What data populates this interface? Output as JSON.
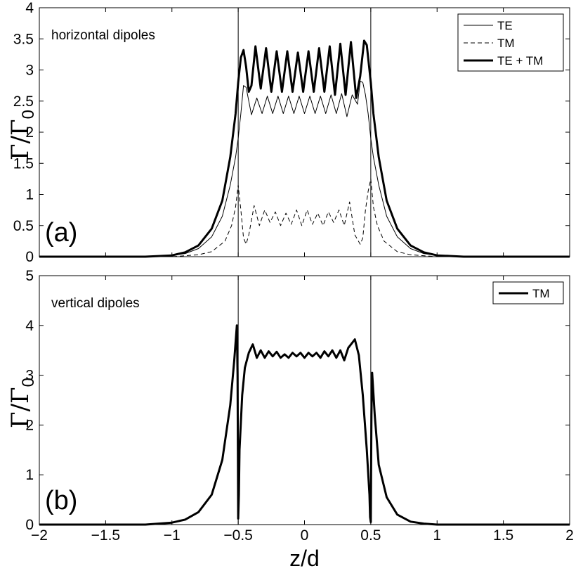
{
  "chart_data": [
    {
      "type": "line",
      "panel_label": "(a)",
      "annotation": "horizontal dipoles",
      "ylabel": "Γ/Γ",
      "ylabel_sub": "0",
      "xlim": [
        -2,
        2
      ],
      "ylim": [
        0,
        4
      ],
      "yticks": [
        "0",
        "0.5",
        "1",
        "1.5",
        "2",
        "2.5",
        "3",
        "3.5",
        "4"
      ],
      "vlines": [
        -0.5,
        0.5
      ],
      "legend_position": "top-right",
      "series": [
        {
          "name": "TE",
          "style": "thin",
          "x": [
            -2,
            -1.2,
            -1.0,
            -0.9,
            -0.8,
            -0.7,
            -0.62,
            -0.56,
            -0.52,
            -0.5,
            -0.48,
            -0.46,
            -0.44,
            -0.42,
            -0.4,
            -0.36,
            -0.32,
            -0.28,
            -0.24,
            -0.2,
            -0.16,
            -0.12,
            -0.08,
            -0.04,
            0.0,
            0.04,
            0.08,
            0.12,
            0.16,
            0.2,
            0.24,
            0.28,
            0.32,
            0.36,
            0.4,
            0.42,
            0.44,
            0.46,
            0.48,
            0.5,
            0.52,
            0.56,
            0.62,
            0.7,
            0.8,
            0.9,
            1.0,
            1.2,
            2
          ],
          "y": [
            0,
            0.0,
            0.02,
            0.05,
            0.13,
            0.32,
            0.65,
            1.15,
            1.6,
            1.9,
            2.3,
            2.75,
            2.72,
            2.5,
            2.28,
            2.55,
            2.3,
            2.58,
            2.3,
            2.58,
            2.3,
            2.58,
            2.3,
            2.58,
            2.3,
            2.58,
            2.3,
            2.58,
            2.3,
            2.6,
            2.3,
            2.62,
            2.25,
            2.6,
            2.45,
            2.82,
            2.8,
            2.6,
            2.3,
            1.9,
            1.6,
            1.15,
            0.65,
            0.32,
            0.13,
            0.05,
            0.02,
            0.0,
            0
          ]
        },
        {
          "name": "TM",
          "style": "dashed",
          "x": [
            -2,
            -1.0,
            -0.8,
            -0.7,
            -0.6,
            -0.55,
            -0.52,
            -0.5,
            -0.48,
            -0.46,
            -0.44,
            -0.42,
            -0.38,
            -0.34,
            -0.3,
            -0.26,
            -0.22,
            -0.18,
            -0.14,
            -0.1,
            -0.06,
            -0.02,
            0.02,
            0.06,
            0.1,
            0.14,
            0.18,
            0.22,
            0.26,
            0.3,
            0.34,
            0.38,
            0.42,
            0.44,
            0.46,
            0.48,
            0.5,
            0.52,
            0.55,
            0.6,
            0.7,
            0.8,
            1.0,
            2
          ],
          "y": [
            0,
            0.0,
            0.03,
            0.08,
            0.25,
            0.5,
            0.8,
            1.15,
            0.75,
            0.3,
            0.2,
            0.35,
            0.82,
            0.5,
            0.75,
            0.55,
            0.72,
            0.5,
            0.7,
            0.52,
            0.75,
            0.5,
            0.75,
            0.52,
            0.7,
            0.5,
            0.72,
            0.55,
            0.75,
            0.5,
            0.88,
            0.35,
            0.2,
            0.3,
            0.75,
            1.05,
            1.25,
            0.8,
            0.5,
            0.25,
            0.08,
            0.03,
            0.0,
            0
          ]
        },
        {
          "name": "TE + TM",
          "style": "thick",
          "x": [
            -2,
            -1.2,
            -1.0,
            -0.9,
            -0.8,
            -0.7,
            -0.62,
            -0.56,
            -0.52,
            -0.5,
            -0.48,
            -0.46,
            -0.44,
            -0.42,
            -0.4,
            -0.37,
            -0.33,
            -0.29,
            -0.25,
            -0.21,
            -0.17,
            -0.13,
            -0.09,
            -0.05,
            -0.01,
            0.03,
            0.07,
            0.11,
            0.15,
            0.19,
            0.23,
            0.27,
            0.31,
            0.35,
            0.39,
            0.42,
            0.45,
            0.47,
            0.5,
            0.52,
            0.56,
            0.62,
            0.7,
            0.8,
            0.9,
            1.0,
            1.2,
            2
          ],
          "y": [
            0,
            0.0,
            0.02,
            0.07,
            0.18,
            0.45,
            0.9,
            1.6,
            2.3,
            2.8,
            3.2,
            3.32,
            3.05,
            2.65,
            2.75,
            3.38,
            2.7,
            3.35,
            2.65,
            3.3,
            2.65,
            3.3,
            2.65,
            3.28,
            2.65,
            3.3,
            2.65,
            3.35,
            2.65,
            3.38,
            2.6,
            3.42,
            2.6,
            3.45,
            2.55,
            2.9,
            3.47,
            3.4,
            2.8,
            2.3,
            1.6,
            0.9,
            0.45,
            0.18,
            0.07,
            0.02,
            0.0,
            0
          ]
        }
      ]
    },
    {
      "type": "line",
      "panel_label": "(b)",
      "annotation": "vertical dipoles",
      "ylabel": "Γ/Γ",
      "ylabel_sub": "0",
      "xlabel": "z/d",
      "xlim": [
        -2,
        2
      ],
      "ylim": [
        0,
        5
      ],
      "xticks": [
        "−2",
        "−1.5",
        "−1",
        "−0.5",
        "0",
        "0.5",
        "1",
        "1.5",
        "2"
      ],
      "yticks": [
        "0",
        "1",
        "2",
        "3",
        "4",
        "5"
      ],
      "vlines": [
        -0.5,
        0.5
      ],
      "legend_position": "top-right",
      "series": [
        {
          "name": "TM",
          "style": "thick",
          "x": [
            -2,
            -1.2,
            -1.0,
            -0.9,
            -0.8,
            -0.7,
            -0.62,
            -0.56,
            -0.53,
            -0.51,
            -0.505,
            -0.5,
            -0.495,
            -0.49,
            -0.47,
            -0.45,
            -0.42,
            -0.39,
            -0.36,
            -0.33,
            -0.3,
            -0.27,
            -0.24,
            -0.21,
            -0.18,
            -0.15,
            -0.12,
            -0.09,
            -0.06,
            -0.03,
            0.0,
            0.03,
            0.06,
            0.09,
            0.12,
            0.15,
            0.18,
            0.21,
            0.24,
            0.27,
            0.3,
            0.33,
            0.36,
            0.38,
            0.41,
            0.44,
            0.47,
            0.49,
            0.495,
            0.5,
            0.505,
            0.51,
            0.53,
            0.56,
            0.62,
            0.7,
            0.8,
            0.9,
            1.0,
            1.2,
            2
          ],
          "y": [
            0,
            0.0,
            0.04,
            0.1,
            0.25,
            0.6,
            1.3,
            2.4,
            3.3,
            4.0,
            3.0,
            0.12,
            0.6,
            1.5,
            2.6,
            3.15,
            3.45,
            3.62,
            3.35,
            3.5,
            3.35,
            3.48,
            3.38,
            3.47,
            3.35,
            3.42,
            3.35,
            3.45,
            3.38,
            3.45,
            3.35,
            3.45,
            3.38,
            3.45,
            3.35,
            3.48,
            3.38,
            3.5,
            3.35,
            3.5,
            3.3,
            3.55,
            3.65,
            3.72,
            3.4,
            2.6,
            1.5,
            0.6,
            0.15,
            0.05,
            2.2,
            3.05,
            2.2,
            1.2,
            0.55,
            0.2,
            0.06,
            0.02,
            0.0,
            0.0,
            0
          ]
        }
      ]
    }
  ]
}
